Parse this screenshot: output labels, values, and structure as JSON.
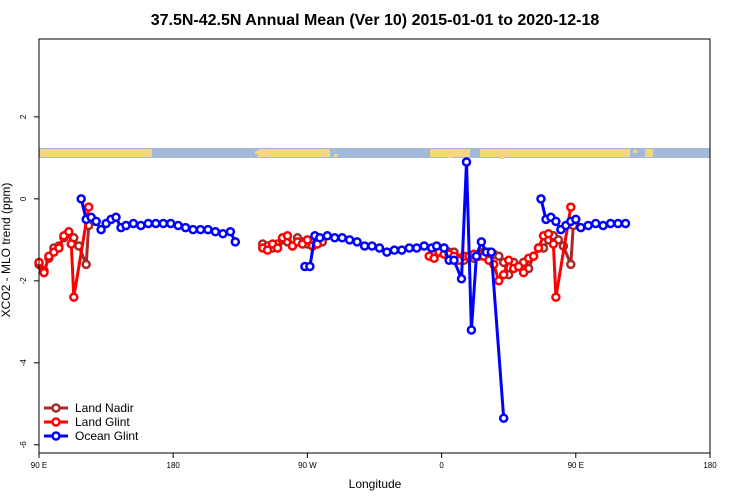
{
  "chart_data": {
    "type": "line",
    "title": "37.5N-42.5N Annual Mean (Ver 10)   2015-01-01 to 2020-12-18",
    "xlabel": "Longitude",
    "ylabel": "XCO2 - MLO trend (ppm)",
    "xlim": [
      -90,
      180
    ],
    "ylim": [
      -6.2,
      3.9
    ],
    "x_ticks": [
      {
        "value": -90,
        "label": "90 E"
      },
      {
        "value": -36,
        "label": "180"
      },
      {
        "value": 18,
        "label": "90 W"
      },
      {
        "value": 72,
        "label": "0"
      },
      {
        "value": 126,
        "label": "90 E"
      },
      {
        "value": 180,
        "label": "180"
      }
    ],
    "y_ticks": [
      {
        "value": 2,
        "label": "2"
      },
      {
        "value": 0,
        "label": "0"
      },
      {
        "value": -2,
        "label": "-2"
      },
      {
        "value": -4,
        "label": "-4"
      },
      {
        "value": -6,
        "label": "-6"
      }
    ],
    "map_strip": {
      "ocean_color": "#a2b9d9",
      "land_color": "#f5d67e"
    },
    "legend_position": "bottom-left",
    "series": [
      {
        "name": "Land Nadir",
        "color": "#a52a2a",
        "points": [
          [
            -90,
            -1.6
          ],
          [
            -88,
            -1.75
          ],
          [
            -86,
            -1.45
          ],
          [
            -84,
            -1.2
          ],
          [
            -82,
            -1.15
          ],
          [
            -80,
            -0.95
          ],
          [
            -78,
            -0.85
          ],
          [
            -76,
            -0.95
          ],
          [
            -74,
            -1.15
          ],
          [
            -71,
            -1.6
          ],
          [
            -70,
            -0.65
          ],
          [
            0,
            -1.1
          ],
          [
            2,
            -1.15
          ],
          [
            4,
            -1.2
          ],
          [
            6,
            -1.1
          ],
          [
            8,
            -1.0
          ],
          [
            10,
            -1.05
          ],
          [
            12,
            -1.15
          ],
          [
            14,
            -0.95
          ],
          [
            16,
            -1.05
          ],
          [
            18,
            -1.1
          ],
          [
            20,
            -1.15
          ],
          [
            22,
            -1.0
          ],
          [
            24,
            -1.05
          ],
          [
            71,
            -1.3
          ],
          [
            73,
            -1.2
          ],
          [
            75,
            -1.3
          ],
          [
            77,
            -1.3
          ],
          [
            79,
            -1.45
          ],
          [
            81,
            -1.5
          ],
          [
            83,
            -1.4
          ],
          [
            85,
            -1.45
          ],
          [
            87,
            -1.35
          ],
          [
            89,
            -1.3
          ],
          [
            91,
            -1.3
          ],
          [
            93,
            -1.35
          ],
          [
            95,
            -1.4
          ],
          [
            97,
            -1.55
          ],
          [
            99,
            -1.85
          ],
          [
            101,
            -1.55
          ],
          [
            103,
            -1.65
          ],
          [
            105,
            -1.55
          ],
          [
            107,
            -1.7
          ],
          [
            109,
            -1.4
          ],
          [
            111,
            -1.2
          ],
          [
            113,
            -1.2
          ],
          [
            115,
            -1.0
          ],
          [
            117,
            -0.9
          ],
          [
            119,
            -1.0
          ],
          [
            121,
            -1.15
          ],
          [
            124,
            -1.6
          ],
          [
            125,
            -0.65
          ]
        ]
      },
      {
        "name": "Land Glint",
        "color": "#ff0000",
        "points": [
          [
            -90,
            -1.55
          ],
          [
            -88,
            -1.8
          ],
          [
            -86,
            -1.4
          ],
          [
            -84,
            -1.3
          ],
          [
            -82,
            -1.2
          ],
          [
            -80,
            -0.9
          ],
          [
            -78,
            -0.8
          ],
          [
            -77,
            -1.1
          ],
          [
            -76,
            -2.4
          ],
          [
            -70,
            -0.2
          ],
          [
            0,
            -1.2
          ],
          [
            2,
            -1.25
          ],
          [
            4,
            -1.1
          ],
          [
            6,
            -1.2
          ],
          [
            8,
            -0.95
          ],
          [
            10,
            -0.9
          ],
          [
            12,
            -1.15
          ],
          [
            14,
            -1.05
          ],
          [
            16,
            -1.1
          ],
          [
            18,
            -1.0
          ],
          [
            20,
            -1.15
          ],
          [
            22,
            -1.1
          ],
          [
            67,
            -1.4
          ],
          [
            69,
            -1.45
          ],
          [
            71,
            -1.3
          ],
          [
            73,
            -1.35
          ],
          [
            75,
            -1.35
          ],
          [
            77,
            -1.4
          ],
          [
            79,
            -1.5
          ],
          [
            81,
            -1.4
          ],
          [
            83,
            -1.4
          ],
          [
            85,
            -1.35
          ],
          [
            87,
            -1.4
          ],
          [
            89,
            -1.4
          ],
          [
            91,
            -1.5
          ],
          [
            93,
            -1.6
          ],
          [
            95,
            -2.0
          ],
          [
            97,
            -1.85
          ],
          [
            99,
            -1.5
          ],
          [
            101,
            -1.7
          ],
          [
            103,
            -1.65
          ],
          [
            105,
            -1.8
          ],
          [
            107,
            -1.45
          ],
          [
            109,
            -1.4
          ],
          [
            111,
            -1.2
          ],
          [
            113,
            -0.9
          ],
          [
            115,
            -0.85
          ],
          [
            117,
            -1.1
          ],
          [
            118,
            -2.4
          ],
          [
            124,
            -0.2
          ]
        ]
      },
      {
        "name": "Ocean Glint",
        "color": "#0000ff",
        "points": [
          [
            -73,
            0.0
          ],
          [
            -71,
            -0.5
          ],
          [
            -69,
            -0.45
          ],
          [
            -67,
            -0.55
          ],
          [
            -65,
            -0.75
          ],
          [
            -63,
            -0.6
          ],
          [
            -61,
            -0.5
          ],
          [
            -59,
            -0.45
          ],
          [
            -57,
            -0.7
          ],
          [
            -55,
            -0.65
          ],
          [
            -52,
            -0.6
          ],
          [
            -49,
            -0.65
          ],
          [
            -46,
            -0.6
          ],
          [
            -43,
            -0.6
          ],
          [
            -40,
            -0.6
          ],
          [
            -37,
            -0.6
          ],
          [
            -34,
            -0.65
          ],
          [
            -31,
            -0.7
          ],
          [
            -28,
            -0.75
          ],
          [
            -25,
            -0.75
          ],
          [
            -22,
            -0.75
          ],
          [
            -19,
            -0.8
          ],
          [
            -16,
            -0.85
          ],
          [
            -13,
            -0.8
          ],
          [
            -11,
            -1.05
          ],
          [
            17,
            -1.65
          ],
          [
            19,
            -1.65
          ],
          [
            21,
            -0.9
          ],
          [
            23,
            -0.95
          ],
          [
            26,
            -0.9
          ],
          [
            29,
            -0.95
          ],
          [
            32,
            -0.95
          ],
          [
            35,
            -1.0
          ],
          [
            38,
            -1.05
          ],
          [
            41,
            -1.15
          ],
          [
            44,
            -1.15
          ],
          [
            47,
            -1.2
          ],
          [
            50,
            -1.3
          ],
          [
            53,
            -1.25
          ],
          [
            56,
            -1.25
          ],
          [
            59,
            -1.2
          ],
          [
            62,
            -1.2
          ],
          [
            65,
            -1.15
          ],
          [
            68,
            -1.2
          ],
          [
            70,
            -1.15
          ],
          [
            73,
            -1.2
          ],
          [
            75,
            -1.5
          ],
          [
            77,
            -1.5
          ],
          [
            80,
            -1.95
          ],
          [
            82,
            0.9
          ],
          [
            84,
            -3.2
          ],
          [
            86,
            -1.4
          ],
          [
            88,
            -1.05
          ],
          [
            90,
            -1.3
          ],
          [
            92,
            -1.3
          ],
          [
            97,
            -5.35
          ],
          [
            112,
            0.0
          ],
          [
            114,
            -0.5
          ],
          [
            116,
            -0.45
          ],
          [
            118,
            -0.55
          ],
          [
            120,
            -0.75
          ],
          [
            122,
            -0.65
          ],
          [
            124,
            -0.55
          ],
          [
            126,
            -0.5
          ],
          [
            128,
            -0.7
          ],
          [
            131,
            -0.65
          ],
          [
            134,
            -0.6
          ],
          [
            137,
            -0.65
          ],
          [
            140,
            -0.6
          ],
          [
            143,
            -0.6
          ],
          [
            146,
            -0.6
          ]
        ]
      }
    ]
  }
}
